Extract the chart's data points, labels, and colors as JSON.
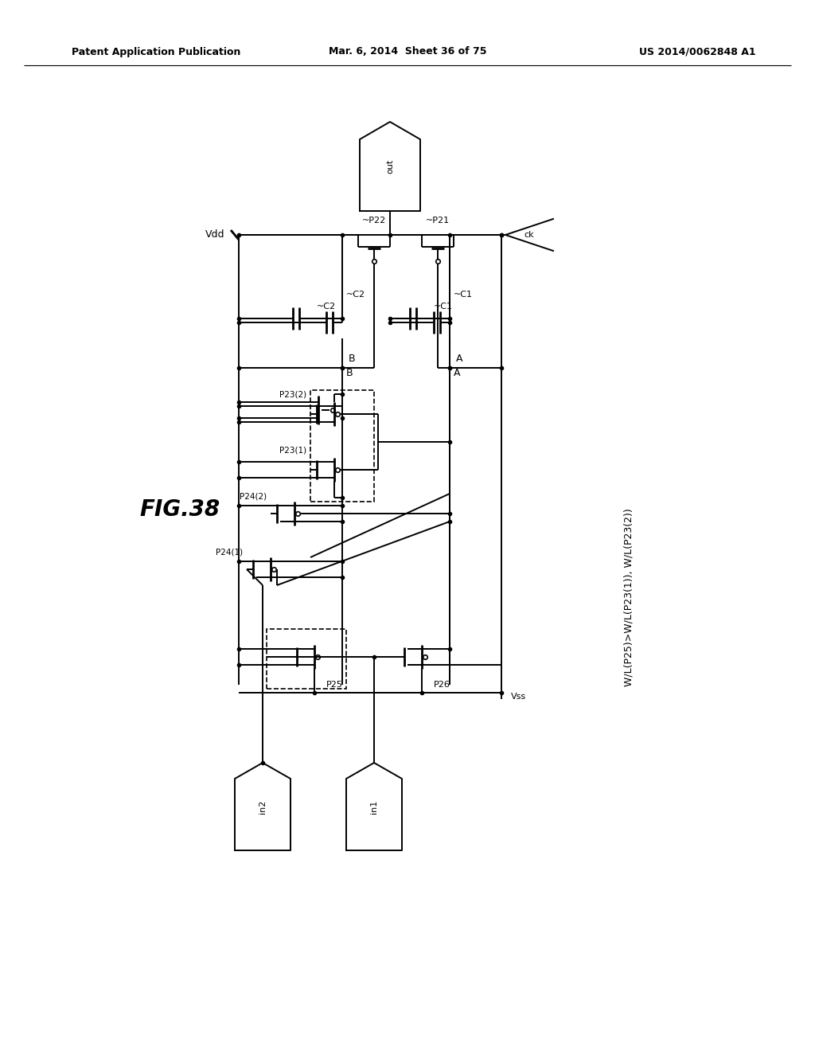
{
  "bg_color": "#ffffff",
  "header_left": "Patent Application Publication",
  "header_center": "Mar. 6, 2014  Sheet 36 of 75",
  "header_right": "US 2014/0062848 A1",
  "fig_label": "FIG.38",
  "annotation": "W/L(P25)>W/L(P23(1)), W/L(P23(2))",
  "lw": 1.4,
  "lw_thick": 2.0
}
